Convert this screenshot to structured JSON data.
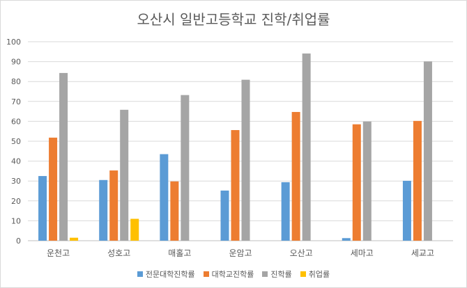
{
  "chart_data": {
    "type": "bar",
    "title": "오산시 일반고등학교 진학/취업률",
    "categories": [
      "운천고",
      "성호고",
      "매홀고",
      "운암고",
      "오산고",
      "세마고",
      "세교고"
    ],
    "series": [
      {
        "name": "전문대학진학률",
        "color": "#5b9bd5",
        "values": [
          32.5,
          30.5,
          43.5,
          25.2,
          29.4,
          1.3,
          30.1
        ]
      },
      {
        "name": "대학교진학률",
        "color": "#ed7d31",
        "values": [
          51.8,
          35.3,
          29.8,
          55.6,
          64.7,
          58.5,
          60.2
        ]
      },
      {
        "name": "진학률",
        "color": "#a5a5a5",
        "values": [
          84.3,
          65.8,
          73.2,
          80.9,
          94.1,
          59.9,
          90.1
        ]
      },
      {
        "name": "취업률",
        "color": "#ffc000",
        "values": [
          1.5,
          11.0,
          0,
          0,
          0,
          0,
          0
        ]
      }
    ],
    "ylim": [
      0,
      100
    ],
    "yticks": [
      0,
      10,
      20,
      30,
      40,
      50,
      60,
      70,
      80,
      90,
      100
    ],
    "grid": true,
    "legend_position": "bottom",
    "xlabel": "",
    "ylabel": ""
  }
}
